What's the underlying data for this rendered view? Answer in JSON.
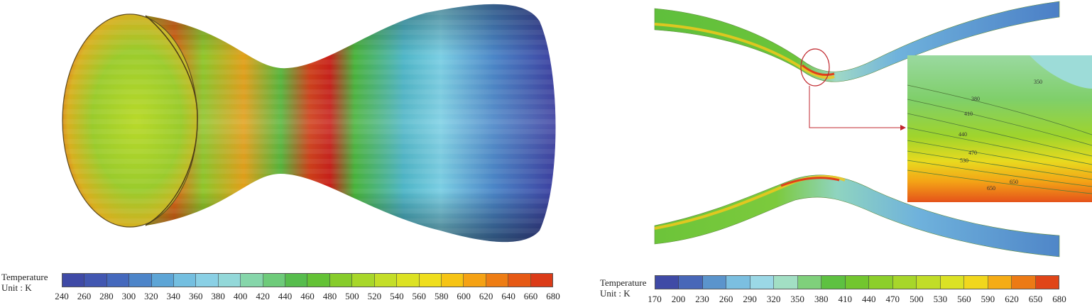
{
  "left": {
    "legend": {
      "title": "Temperature",
      "unit": "Unit : K",
      "ticks": [
        "240",
        "260",
        "280",
        "300",
        "320",
        "340",
        "360",
        "380",
        "400",
        "420",
        "440",
        "460",
        "480",
        "500",
        "520",
        "540",
        "560",
        "580",
        "600",
        "620",
        "640",
        "660",
        "680"
      ],
      "colors": [
        "#3f4aa6",
        "#4257b1",
        "#4569bd",
        "#4d85c9",
        "#5da5d6",
        "#74bfe0",
        "#8ad0e5",
        "#93d8d9",
        "#86d6aa",
        "#6ecb7a",
        "#57bd4d",
        "#64c236",
        "#87cc2b",
        "#a8d72a",
        "#c4de28",
        "#dce223",
        "#efde1d",
        "#f6c415",
        "#f5a214",
        "#ee7d14",
        "#e65915",
        "#db3b18"
      ]
    }
  },
  "right": {
    "legend": {
      "title": "Temperature",
      "unit": "Unit : K",
      "ticks": [
        "170",
        "200",
        "230",
        "260",
        "290",
        "320",
        "350",
        "380",
        "410",
        "440",
        "470",
        "500",
        "530",
        "560",
        "590",
        "620",
        "650",
        "680"
      ],
      "colors": [
        "#3f4aa6",
        "#4867b8",
        "#5b94cc",
        "#7bbfe0",
        "#9bd8e6",
        "#a2dfc4",
        "#7fd07b",
        "#5ec141",
        "#72c62f",
        "#8ccf2b",
        "#a7d62a",
        "#c1dd28",
        "#dbe225",
        "#f1d71d",
        "#f5ac16",
        "#ec7a15",
        "#e04518"
      ]
    },
    "contour_labels": [
      "350",
      "380",
      "410",
      "440",
      "470",
      "500",
      "530",
      "560",
      "590",
      "620",
      "650",
      "680"
    ]
  }
}
